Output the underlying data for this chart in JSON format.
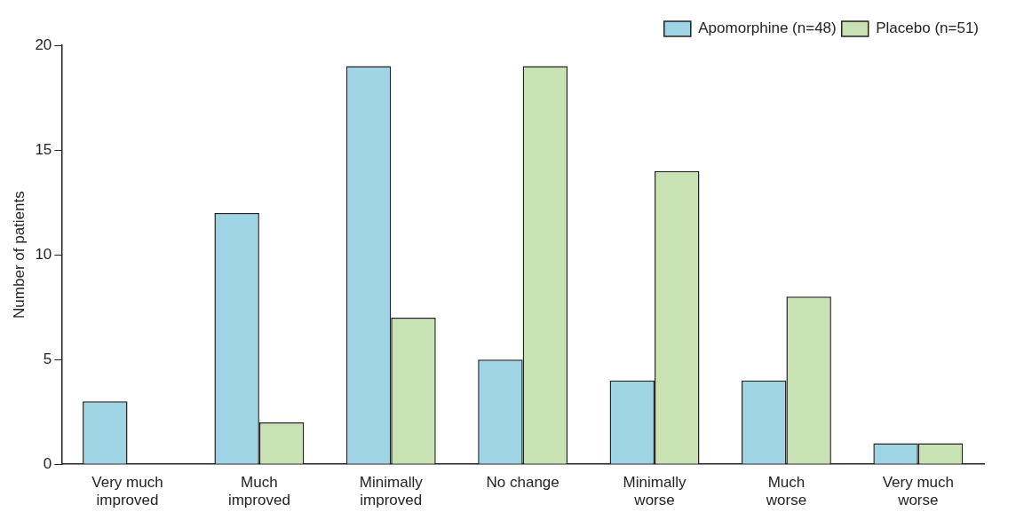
{
  "chart_data": {
    "type": "bar",
    "ylabel": "Number of patients",
    "categories": [
      "Very much improved",
      "Much improved",
      "Minimally improved",
      "No change",
      "Minimally worse",
      "Much worse",
      "Very much worse"
    ],
    "series": [
      {
        "name": "Apomorphine (n=48)",
        "color": "#9fd4e4",
        "values": [
          3,
          12,
          19,
          5,
          4,
          4,
          1
        ]
      },
      {
        "name": "Placebo (n=51)",
        "color": "#c9e2b3",
        "values": [
          0,
          2,
          7,
          19,
          14,
          8,
          1
        ]
      }
    ],
    "ylim": [
      0,
      20
    ],
    "yticks": [
      0,
      5,
      10,
      15,
      20
    ],
    "grid": false,
    "legend": "top right"
  }
}
